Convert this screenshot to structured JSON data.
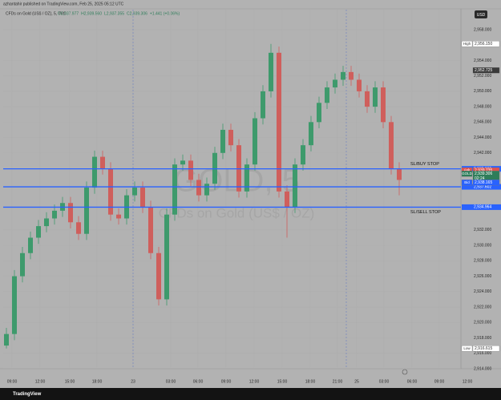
{
  "header": {
    "publisher": "azhantahir published on TradingView.com, Feb 25, 2025 05:12 UTC"
  },
  "chart_data": {
    "type": "candlestick",
    "title": "CFDs on Gold (US$ / OZ), 5, TVC",
    "ohlc_legend": [
      "O2,937.977",
      "H2,939.560",
      "L2,937.355",
      "C2,939.306",
      "+1.441 (+0.06%)"
    ],
    "watermark": [
      "GOLD, 5",
      "CFDs on Gold (US$ / OZ)"
    ],
    "currency": "USD",
    "up_color": "#3e9a6c",
    "down_color": "#cf5f5c",
    "open": [
      2917,
      2918.5,
      2926,
      2929,
      2931,
      2932.5,
      2933.5,
      2934.5,
      2935.5,
      2933,
      2931.5,
      2937.5,
      2941.5,
      2940,
      2934,
      2933.5,
      2936.5,
      2937.5,
      2935,
      2929,
      2923,
      2934,
      2940.5,
      2941,
      2938.5,
      2936.5,
      2938,
      2942,
      2945,
      2943,
      2937,
      2940.5,
      2946.5,
      2950,
      2955,
      2937,
      2935,
      2940.5,
      2943,
      2946,
      2948.5,
      2950.5,
      2951.5,
      2952.5,
      2951.5,
      2950,
      2948,
      2950.5,
      2946,
      2940
    ],
    "high": [
      2919.3,
      2926.8,
      2929.8,
      2931.8,
      2933.3,
      2934.3,
      2935.3,
      2936.3,
      2936.3,
      2933.8,
      2938.3,
      2942.3,
      2942.3,
      2940.8,
      2934.8,
      2937.3,
      2938.3,
      2938.3,
      2935.8,
      2929.8,
      2934.8,
      2941.3,
      2941.8,
      2941.8,
      2939.3,
      2938.8,
      2942.8,
      2945.8,
      2945.8,
      2943.8,
      2941.3,
      2947.3,
      2950.8,
      2956.15,
      2955.8,
      2937.8,
      2941.3,
      2943.8,
      2946.8,
      2949.3,
      2951.3,
      2952.3,
      2953.3,
      2953.3,
      2952.3,
      2950.8,
      2951.3,
      2951.3,
      2946.8,
      2940.8
    ],
    "low": [
      2916.615,
      2917.7,
      2925.2,
      2928.2,
      2930.2,
      2931.7,
      2932.7,
      2933.7,
      2932.2,
      2930.7,
      2930.7,
      2936.7,
      2939.2,
      2933.2,
      2932.7,
      2932.7,
      2935.7,
      2934.2,
      2928.2,
      2922.2,
      2922.2,
      2933.2,
      2939.7,
      2937.7,
      2935.7,
      2935.7,
      2937.2,
      2941.2,
      2942.2,
      2936.2,
      2936.2,
      2939.7,
      2945.7,
      2949.2,
      2936.2,
      2931,
      2934.2,
      2939.7,
      2942.2,
      2945.2,
      2947.7,
      2949.7,
      2950.7,
      2950.7,
      2949.2,
      2947.2,
      2947.2,
      2945.2,
      2939.2,
      2936.5
    ],
    "close": [
      2918.5,
      2926,
      2929,
      2931,
      2932.5,
      2933.5,
      2934.5,
      2935.5,
      2933,
      2931.5,
      2937.5,
      2941.5,
      2940,
      2934,
      2933.5,
      2936.5,
      2937.5,
      2935,
      2929,
      2923,
      2934,
      2940.5,
      2941,
      2938.5,
      2936.5,
      2938,
      2942,
      2945,
      2943,
      2937,
      2940.5,
      2946.5,
      2950,
      2955,
      2937,
      2935,
      2940.5,
      2943,
      2946,
      2948.5,
      2950.5,
      2951.5,
      2952.5,
      2951.5,
      2950,
      2948,
      2950.5,
      2946,
      2940,
      2938.5
    ],
    "xlim": [
      -0.4,
      56.7
    ],
    "xticks": [
      {
        "value": 0.7,
        "label": "09:00"
      },
      {
        "value": 4.2,
        "label": "12:00"
      },
      {
        "value": 7.9,
        "label": "15:00"
      },
      {
        "value": 11.3,
        "label": "18:00"
      },
      {
        "value": 15.8,
        "label": "23"
      },
      {
        "value": 20.5,
        "label": "03:00"
      },
      {
        "value": 23.9,
        "label": "06:00"
      },
      {
        "value": 27.4,
        "label": "09:00"
      },
      {
        "value": 30.9,
        "label": "12:00"
      },
      {
        "value": 34.4,
        "label": "15:00"
      },
      {
        "value": 37.9,
        "label": "18:00"
      },
      {
        "value": 41.3,
        "label": "21:00"
      },
      {
        "value": 43.7,
        "label": "25"
      },
      {
        "value": 47.1,
        "label": "03:00"
      },
      {
        "value": 50.6,
        "label": "06:00"
      },
      {
        "value": 54,
        "label": "09:00"
      },
      {
        "value": 57.5,
        "label": "12:00"
      }
    ],
    "session_breaks": [
      15.8,
      42.4
    ],
    "ylim": [
      2914.2,
      2960.6
    ],
    "yticks": [
      {
        "value": 2958,
        "label": "2,958.000"
      },
      {
        "value": 2954,
        "label": "2,954.000"
      },
      {
        "value": 2952,
        "label": "2,952.000"
      },
      {
        "value": 2950,
        "label": "2,950.000"
      },
      {
        "value": 2948,
        "label": "2,948.000"
      },
      {
        "value": 2946,
        "label": "2,946.000"
      },
      {
        "value": 2944,
        "label": "2,944.000"
      },
      {
        "value": 2942,
        "label": "2,942.000"
      },
      {
        "value": 2932,
        "label": "2,932.000"
      },
      {
        "value": 2930,
        "label": "2,930.000"
      },
      {
        "value": 2928,
        "label": "2,928.000"
      },
      {
        "value": 2926,
        "label": "2,926.000"
      },
      {
        "value": 2924,
        "label": "2,924.000"
      },
      {
        "value": 2922,
        "label": "2,922.000"
      },
      {
        "value": 2920,
        "label": "2,920.000"
      },
      {
        "value": 2918,
        "label": "2,918.000"
      },
      {
        "value": 2916,
        "label": "2,916.000"
      },
      {
        "value": 2914,
        "label": "2,914.000"
      }
    ],
    "levels": [
      {
        "value": 2939.935,
        "label": "2,939.935",
        "text": "SL/BUY STOP",
        "color": "#2962ff"
      },
      {
        "value": 2937.602,
        "label": "2,937.602",
        "color": "#2962ff"
      },
      {
        "value": 2934.964,
        "label": "2,934.964",
        "text": "SL/SELL STOP",
        "color": "#2962ff"
      }
    ],
    "markers": [
      {
        "tag": "High",
        "value": 2956.15,
        "label": "2,956.150",
        "color": "#ffffff",
        "text_color": "#333333"
      },
      {
        "value": 2952.725,
        "label": "2,952.725",
        "color": "#3a3a3a",
        "text_color": "#ffffff"
      },
      {
        "tag": "Ask",
        "value": 2939.735,
        "label": "2,939.735",
        "color": "#e0524f",
        "text_color": "#ffffff"
      },
      {
        "tag": "GOLD",
        "value": 2939.306,
        "label": "2,939.306",
        "sub": "02:24",
        "color": "#2e7d5a",
        "text_color": "#ffffff"
      },
      {
        "tag": "Bid",
        "value": 2938.165,
        "label": "2,938.165",
        "color": "#2962ff",
        "text_color": "#ffffff"
      },
      {
        "tag": "Low",
        "value": 2916.615,
        "label": "2,916.615",
        "color": "#ffffff",
        "text_color": "#333333"
      }
    ],
    "footer": "TradingView"
  }
}
